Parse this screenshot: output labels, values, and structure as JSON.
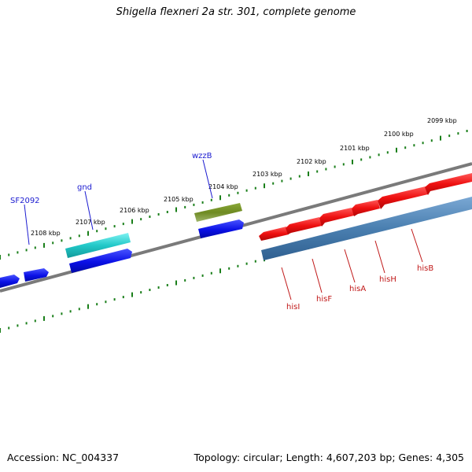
{
  "title": "Shigella flexneri 2a str. 301, complete genome",
  "footer": {
    "accession": "Accession: NC_004337",
    "summary": "Topology: circular; Length: 4,607,203 bp; Genes: 4,305"
  },
  "ruler_labels": [
    "2099 kbp",
    "2100 kbp",
    "2101 kbp",
    "2102 kbp",
    "2103 kbp",
    "2104 kbp",
    "2105 kbp",
    "2106 kbp",
    "2107 kbp",
    "2108 kbp"
  ],
  "top_gene_labels": [
    "wzzB",
    "gnd",
    "SF2092"
  ],
  "bottom_gene_labels": [
    "hisI",
    "hisF",
    "hisA",
    "hisH",
    "hisB"
  ],
  "colors": {
    "ruler": "#1a7f1a",
    "backbone": "#777777",
    "blue_gene": "#0a10e6",
    "cyan_gene": "#22c8c8",
    "olive_gene": "#6e8a22",
    "red_gene": "#ee1010",
    "steel_gene": "#4a7fb0",
    "top_label": "#1a1ad0",
    "bottom_label": "#c01818"
  }
}
